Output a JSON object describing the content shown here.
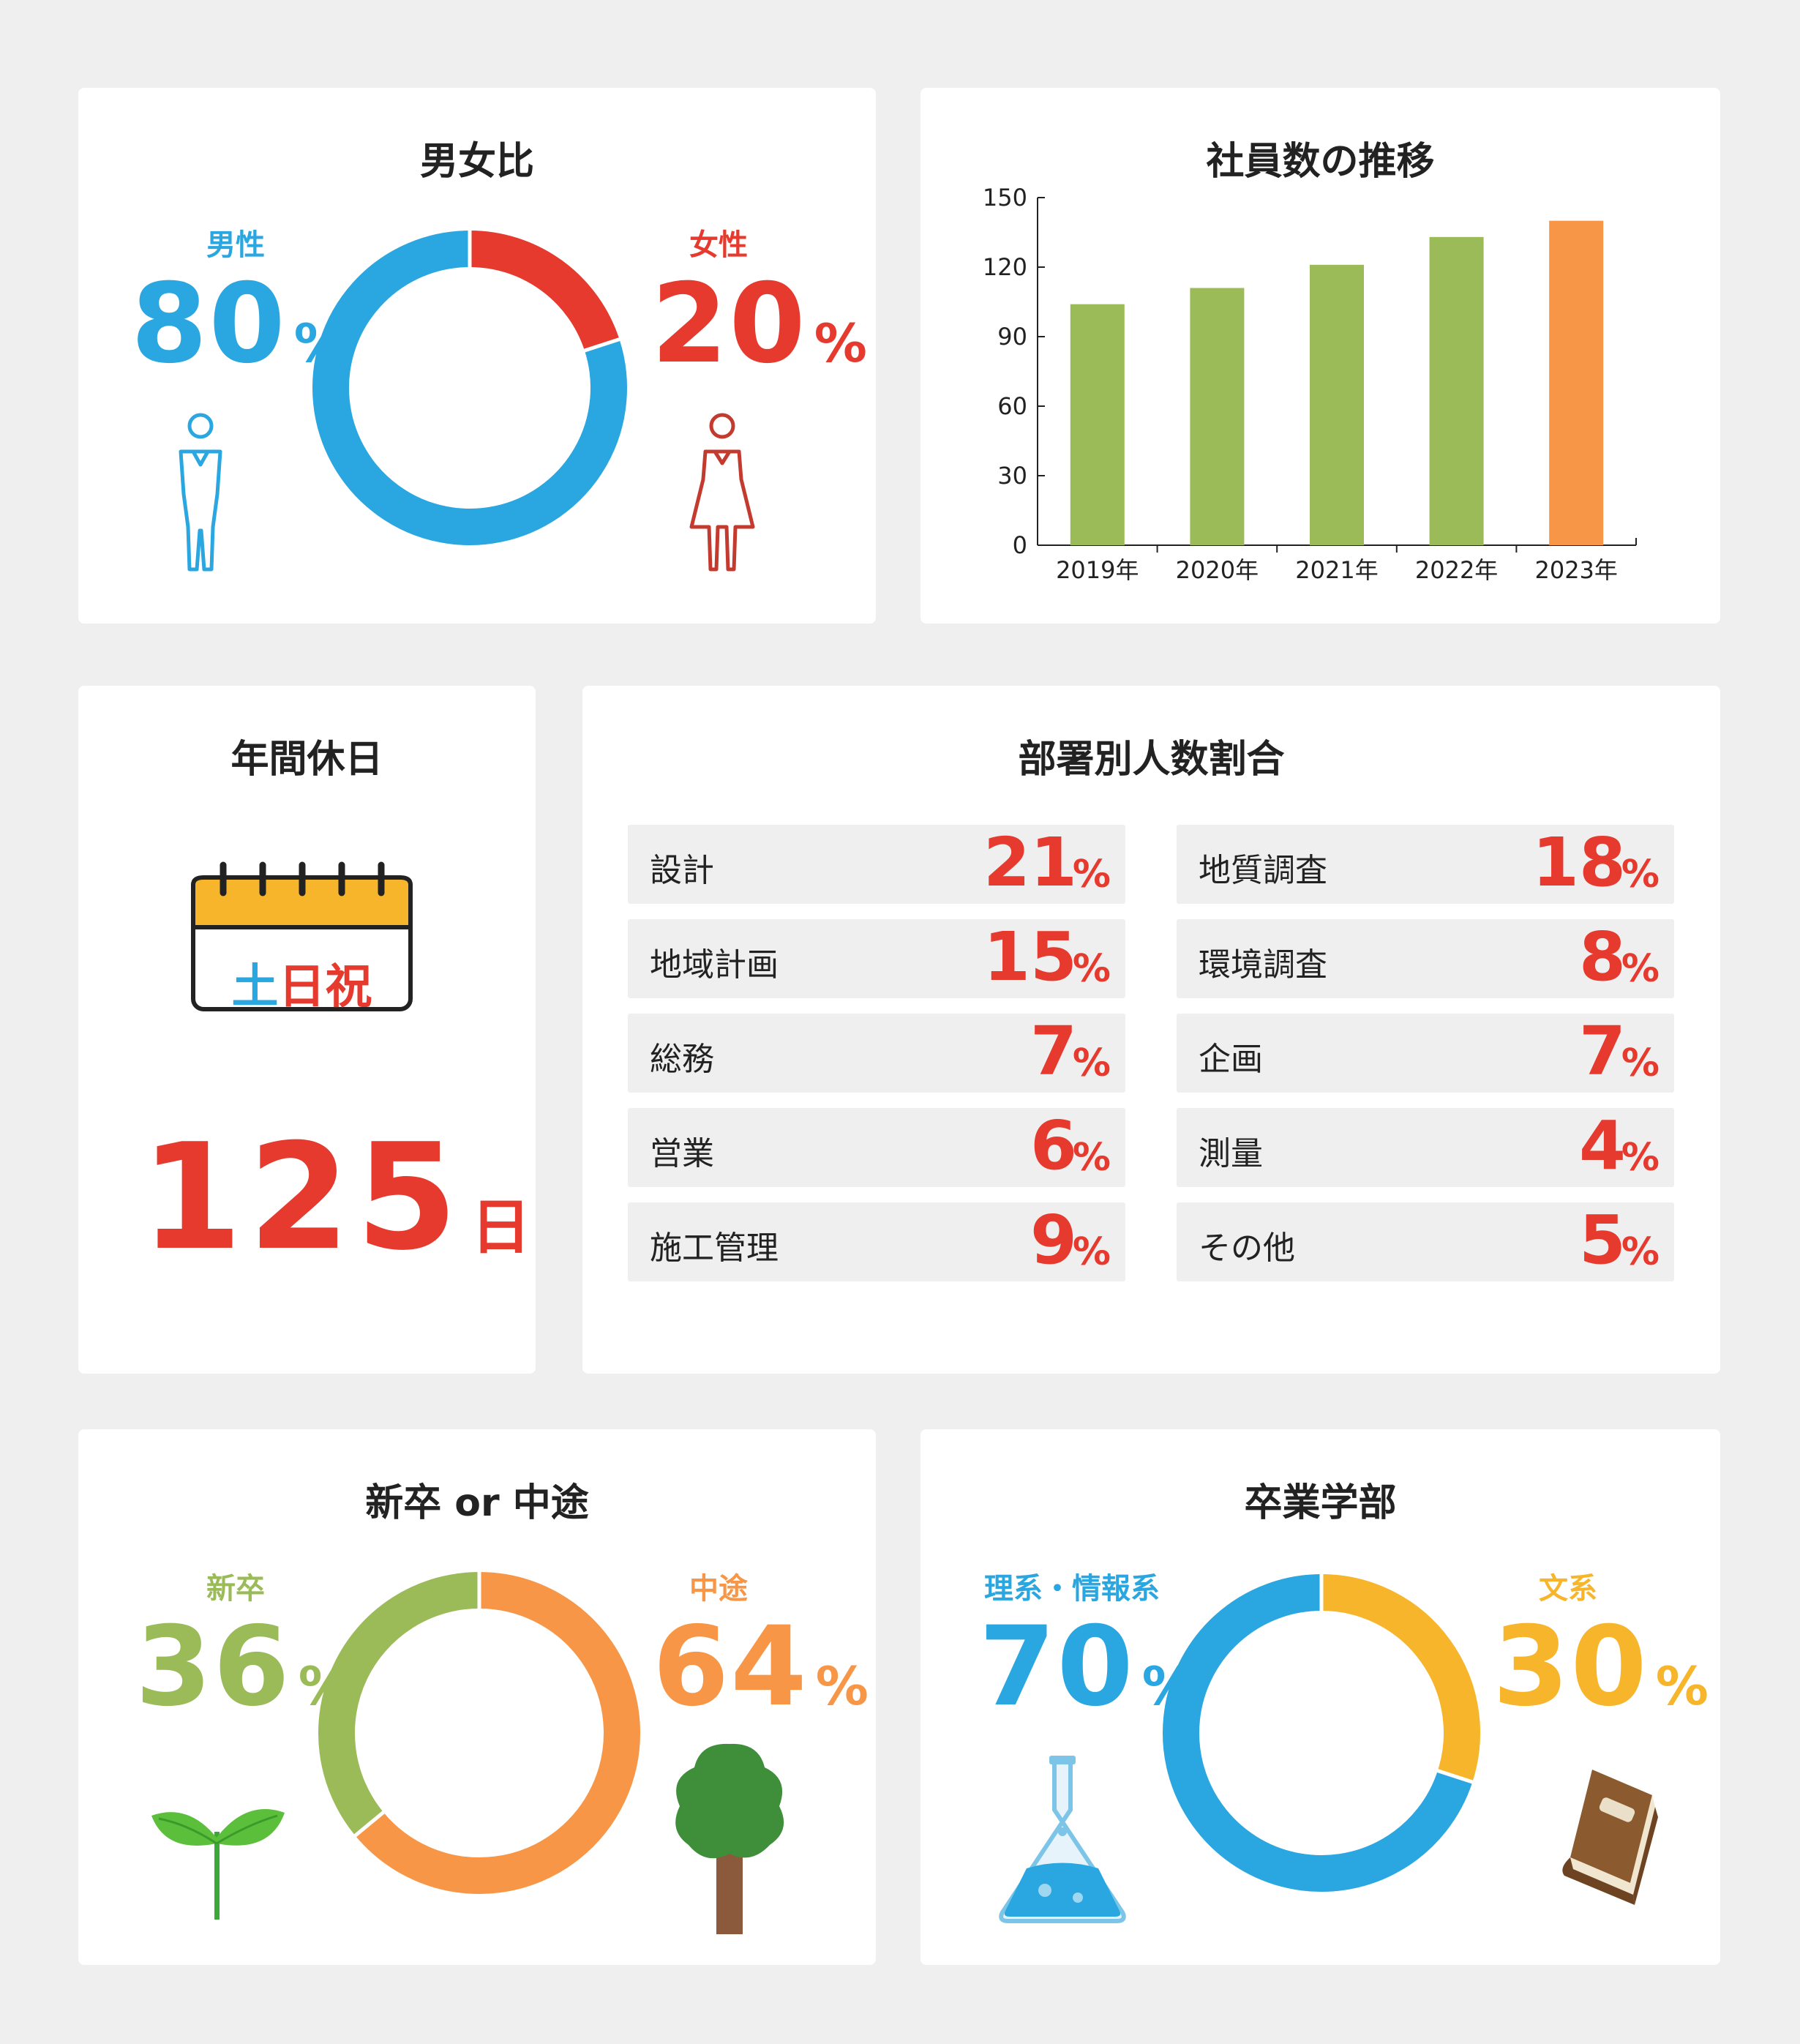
{
  "colors": {
    "male": "#2aa6e0",
    "female": "#e63a2e",
    "bar": "#9bbb59",
    "bar_latest": "#f79646",
    "shinsotsu": "#9bbb59",
    "chuto": "#f79646",
    "rikei": "#2aa6e0",
    "bunkei": "#f7b52c",
    "accent_red": "#e63a2e"
  },
  "gender": {
    "title": "男女比",
    "male_label": "男性",
    "male_value": "80",
    "male_pct": "%",
    "female_label": "女性",
    "female_value": "20",
    "female_pct": "%",
    "male_icon": "male-person-icon",
    "female_icon": "female-person-icon"
  },
  "employees": {
    "title": "社員数の推移"
  },
  "holidays": {
    "title": "年間休日",
    "calendar_text_1": "土",
    "calendar_text_2": "日祝",
    "value": "125",
    "unit": "日",
    "icon": "calendar-icon"
  },
  "departments": {
    "title": "部署別人数割合",
    "left": [
      {
        "name": "設計",
        "value": "21",
        "pct": "%"
      },
      {
        "name": "地域計画",
        "value": "15",
        "pct": "%"
      },
      {
        "name": "総務",
        "value": "7",
        "pct": "%"
      },
      {
        "name": "営業",
        "value": "6",
        "pct": "%"
      },
      {
        "name": "施工管理",
        "value": "9",
        "pct": "%"
      }
    ],
    "right": [
      {
        "name": "地質調査",
        "value": "18",
        "pct": "%"
      },
      {
        "name": "環境調査",
        "value": "8",
        "pct": "%"
      },
      {
        "name": "企画",
        "value": "7",
        "pct": "%"
      },
      {
        "name": "測量",
        "value": "4",
        "pct": "%"
      },
      {
        "name": "その他",
        "value": "5",
        "pct": "%"
      }
    ]
  },
  "hiring": {
    "title": "新卒 or 中途",
    "left_label": "新卒",
    "left_value": "36",
    "left_pct": "%",
    "right_label": "中途",
    "right_value": "64",
    "right_pct": "%",
    "left_icon": "sprout-icon",
    "right_icon": "tree-icon"
  },
  "faculty": {
    "title": "卒業学部",
    "left_label": "理系・情報系",
    "left_value": "70",
    "left_pct": "%",
    "right_label": "文系",
    "right_value": "30",
    "right_pct": "%",
    "left_icon": "flask-icon",
    "right_icon": "book-icon"
  },
  "chart_data": [
    {
      "type": "pie",
      "title": "男女比",
      "categories": [
        "男性",
        "女性"
      ],
      "values": [
        80,
        20
      ],
      "donut": true
    },
    {
      "type": "bar",
      "title": "社員数の推移",
      "categories": [
        "2019年",
        "2020年",
        "2021年",
        "2022年",
        "2023年"
      ],
      "values": [
        104,
        111,
        121,
        133,
        140
      ],
      "ylim": [
        0,
        150
      ],
      "yticks": [
        "0",
        "30",
        "60",
        "90",
        "120",
        "150"
      ],
      "grid": false
    },
    {
      "type": "pie",
      "title": "新卒 or 中途",
      "categories": [
        "新卒",
        "中途"
      ],
      "values": [
        36,
        64
      ],
      "donut": true
    },
    {
      "type": "pie",
      "title": "卒業学部",
      "categories": [
        "理系・情報系",
        "文系"
      ],
      "values": [
        70,
        30
      ],
      "donut": true
    }
  ]
}
